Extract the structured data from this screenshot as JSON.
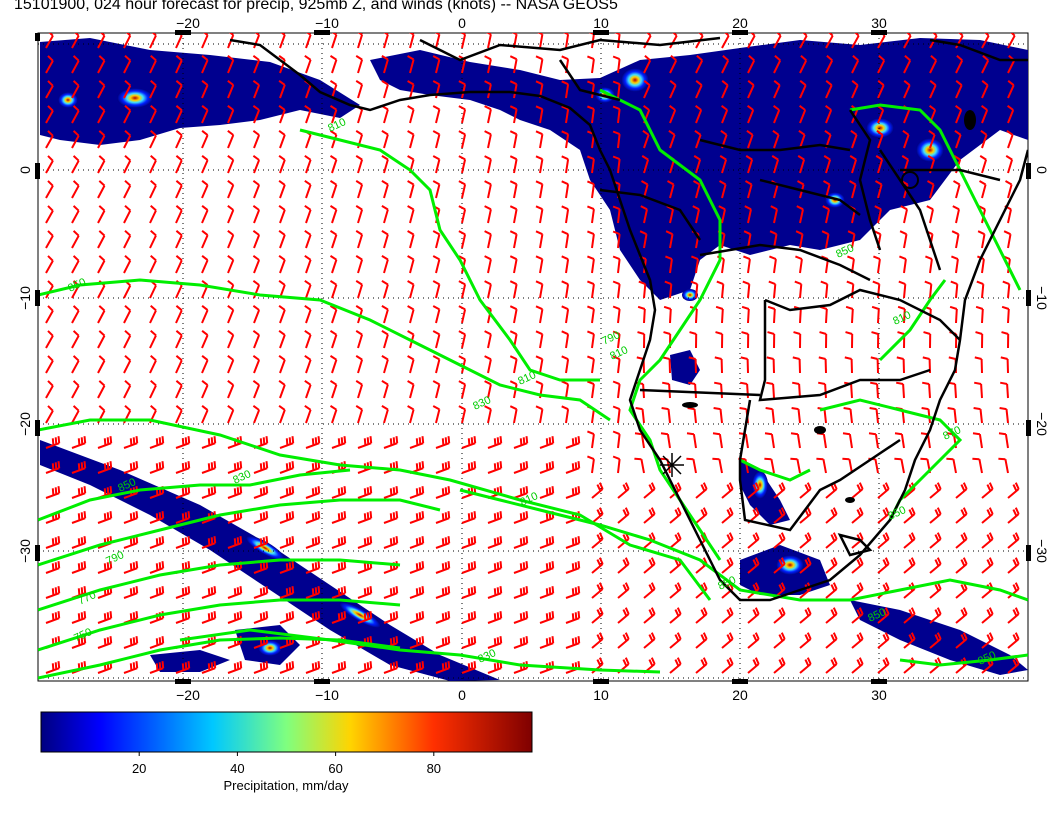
{
  "title": "15101900, 024 hour forecast for precip, 925mb Z, and winds (knots) -- NASA GEOS5",
  "map": {
    "lon_min": -30,
    "lon_max": 41,
    "lat_min": -40,
    "lat_max": 9,
    "lon_ticks_top": [
      "−20",
      "−10",
      "0",
      "10",
      "20",
      "30"
    ],
    "lon_ticks_bottom": [
      "−20",
      "−10",
      "0",
      "10",
      "20",
      "30"
    ],
    "lat_ticks_left": [
      "0",
      "−10",
      "−20",
      "−30"
    ],
    "lat_ticks_right": [
      "0",
      "−10",
      "−20",
      "−30"
    ],
    "contour_labels": [
      "810",
      "850",
      "810",
      "790",
      "830",
      "810",
      "830",
      "850",
      "810",
      "790",
      "770",
      "750",
      "850",
      "830",
      "850",
      "870",
      "850",
      "810",
      "850",
      "850"
    ],
    "colors": {
      "wind_barbs": "#ff0000",
      "contours": "#00ee00",
      "coastline": "#000000",
      "precip_low": "#00007f",
      "precip_high": "#7f0000"
    }
  },
  "colorbar": {
    "title": "Precipitation, mm/day",
    "ticks": [
      "20",
      "40",
      "60",
      "80"
    ],
    "tick_values": [
      20,
      40,
      60,
      80
    ],
    "min": 0,
    "max": 100
  },
  "icons": {
    "station_marker": "asterisk-icon"
  }
}
